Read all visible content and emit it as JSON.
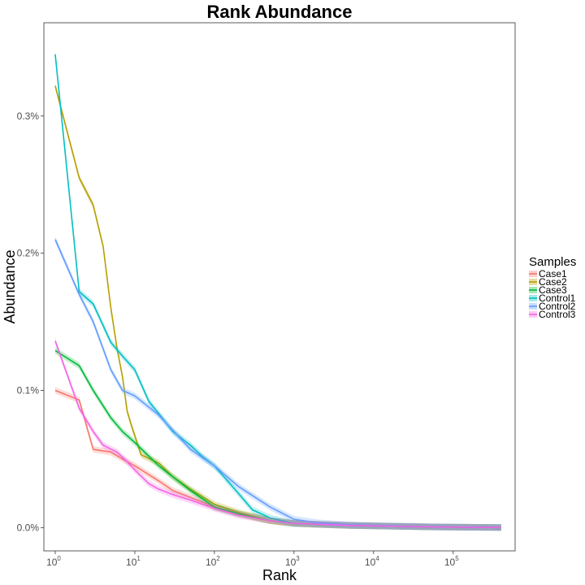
{
  "chart_data": {
    "type": "line",
    "title": "Rank Abundance",
    "xlabel": "Rank",
    "ylabel": "Abundance",
    "x_scale": "log10",
    "xlim": [
      0.72,
      600000
    ],
    "ylim": [
      -0.00017,
      0.00368
    ],
    "x_ticks": [
      {
        "value": 1,
        "base": "10",
        "exp": "0"
      },
      {
        "value": 10,
        "base": "10",
        "exp": "1"
      },
      {
        "value": 100,
        "base": "10",
        "exp": "2"
      },
      {
        "value": 1000,
        "base": "10",
        "exp": "3"
      },
      {
        "value": 10000,
        "base": "10",
        "exp": "4"
      },
      {
        "value": 100000,
        "base": "10",
        "exp": "5"
      }
    ],
    "y_ticks": [
      {
        "value": 0.0,
        "label": "0.0%"
      },
      {
        "value": 0.001,
        "label": "0.1%"
      },
      {
        "value": 0.002,
        "label": "0.2%"
      },
      {
        "value": 0.003,
        "label": "0.3%"
      }
    ],
    "grid": false,
    "legend": {
      "title": "Samples",
      "position": "right"
    },
    "series": [
      {
        "name": "Case1",
        "color": "#F8766D",
        "x": [
          1,
          2,
          3,
          5,
          7,
          10,
          20,
          30,
          50,
          100,
          200,
          500,
          1000,
          5000,
          50000,
          400000
        ],
        "y": [
          0.001,
          0.00093,
          0.00057,
          0.00055,
          0.0005,
          0.00045,
          0.00034,
          0.00027,
          0.00022,
          0.00015,
          0.0001,
          5e-05,
          3e-05,
          1.5e-05,
          5e-06,
          0.0
        ]
      },
      {
        "name": "Case2",
        "color": "#B79F00",
        "x": [
          1,
          2,
          3,
          4,
          5,
          6,
          7,
          8,
          9,
          12,
          20,
          30,
          50,
          100,
          200,
          500,
          1000,
          5000,
          50000,
          400000
        ],
        "y": [
          0.00322,
          0.00255,
          0.00235,
          0.00205,
          0.0016,
          0.0013,
          0.0011,
          0.00085,
          0.00075,
          0.00053,
          0.00047,
          0.00037,
          0.00028,
          0.00017,
          0.00011,
          5e-05,
          3e-05,
          1.5e-05,
          5e-06,
          0.0
        ]
      },
      {
        "name": "Case3",
        "color": "#00BA38",
        "x": [
          1,
          2,
          3,
          5,
          7,
          10,
          15,
          20,
          30,
          50,
          100,
          200,
          500,
          1000,
          5000,
          50000,
          400000
        ],
        "y": [
          0.00129,
          0.00118,
          0.001,
          0.0008,
          0.0007,
          0.00062,
          0.00052,
          0.00045,
          0.00037,
          0.00027,
          0.00015,
          0.0001,
          5e-05,
          3e-05,
          1.5e-05,
          5e-06,
          0.0
        ]
      },
      {
        "name": "Control1",
        "color": "#00BFC4",
        "x": [
          1,
          2,
          3,
          5,
          7,
          10,
          15,
          20,
          30,
          50,
          70,
          100,
          200,
          300,
          500,
          1000,
          5000,
          50000,
          400000
        ],
        "y": [
          0.00345,
          0.00172,
          0.00163,
          0.00135,
          0.00125,
          0.00115,
          0.00092,
          0.00083,
          0.0007,
          0.0006,
          0.00052,
          0.00045,
          0.00025,
          0.00013,
          7e-05,
          3e-05,
          1.5e-05,
          5e-06,
          0.0
        ]
      },
      {
        "name": "Control2",
        "color": "#619CFF",
        "x": [
          1,
          2,
          3,
          5,
          7,
          10,
          20,
          50,
          100,
          200,
          500,
          1000,
          2000,
          5000,
          20000,
          100000,
          400000
        ],
        "y": [
          0.0021,
          0.0017,
          0.0015,
          0.00115,
          0.001,
          0.00096,
          0.00082,
          0.00057,
          0.00045,
          0.0003,
          0.00015,
          6e-05,
          3.5e-05,
          2e-05,
          1e-05,
          3e-06,
          0.0
        ]
      },
      {
        "name": "Control3",
        "color": "#F564E3",
        "x": [
          1,
          2,
          3,
          4,
          6,
          8,
          10,
          15,
          20,
          30,
          50,
          100,
          200,
          500,
          1000,
          5000,
          50000,
          400000
        ],
        "y": [
          0.00136,
          0.00087,
          0.0007,
          0.0006,
          0.00055,
          0.00048,
          0.00042,
          0.00032,
          0.00028,
          0.00024,
          0.0002,
          0.00014,
          9e-05,
          5e-05,
          3e-05,
          1.5e-05,
          5e-06,
          0.0
        ]
      }
    ]
  }
}
